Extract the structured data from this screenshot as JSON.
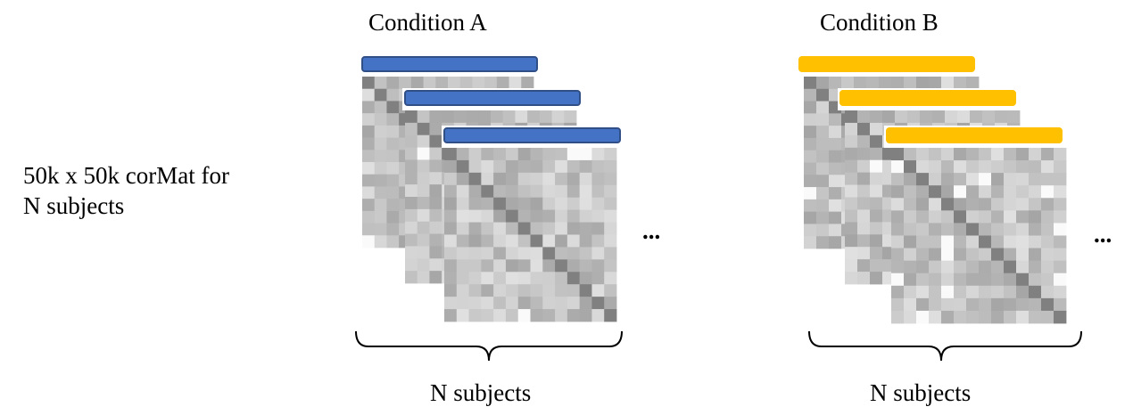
{
  "side_label": {
    "line1": "50k x 50k corMat for",
    "line2": "N subjects"
  },
  "groups": [
    {
      "id": "A",
      "title": "Condition A",
      "bar_color": "#4472c4",
      "bar_stroke": "#2f4f86",
      "ellipsis": "...",
      "brace_label": "N subjects"
    },
    {
      "id": "B",
      "title": "Condition B",
      "bar_color": "#ffc000",
      "bar_stroke": "#ffc000",
      "ellipsis": "...",
      "brace_label": "N subjects"
    }
  ]
}
